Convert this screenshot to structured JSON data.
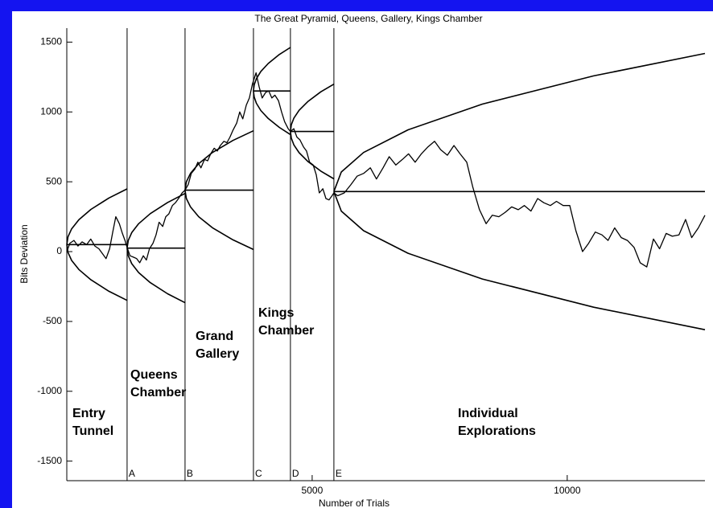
{
  "chart_data": {
    "type": "line",
    "title": "The Great Pyramid, Queens, Gallery, Kings Chamber",
    "x_label": "Number of Trials",
    "y_label": "Bits Deviation",
    "xlim": [
      190,
      12700
    ],
    "ylim": [
      -1640,
      1600
    ],
    "xticks": [
      5000,
      10000
    ],
    "yticks": [
      -1500,
      -1000,
      -500,
      0,
      500,
      1000,
      1500
    ],
    "color": "#000000",
    "markers": [
      {
        "x": 1372,
        "label": "A"
      },
      {
        "x": 2508,
        "label": "B"
      },
      {
        "x": 3849,
        "label": "C"
      },
      {
        "x": 4574,
        "label": "D"
      },
      {
        "x": 5426,
        "label": "E"
      }
    ],
    "annotations": [
      [
        "Entry",
        "Tunnel"
      ],
      [
        "Queens",
        "Chamber"
      ],
      [
        "Grand",
        "Gallery"
      ],
      [
        "Kings",
        "Chamber"
      ],
      [
        "Individual",
        "Explorations"
      ]
    ],
    "lines": [
      {
        "x": [
          190,
          214,
          285,
          426,
          663,
          1017,
          1372
        ],
        "values": [
          50,
          106,
          163,
          228,
          302,
          384,
          449
        ]
      },
      {
        "x": [
          190,
          214,
          285,
          426,
          663,
          1017,
          1372
        ],
        "values": [
          50,
          -6,
          -63,
          -128,
          -202,
          -284,
          -349
        ]
      },
      {
        "x": [
          190,
          1372
        ],
        "values": [
          50,
          50
        ]
      },
      {
        "x": [
          1372,
          1395,
          1463,
          1599,
          1826,
          2167,
          2508
        ],
        "values": [
          25,
          80,
          136,
          200,
          272,
          352,
          416
        ]
      },
      {
        "x": [
          1372,
          1395,
          1463,
          1599,
          1826,
          2167,
          2508
        ],
        "values": [
          25,
          -30,
          -86,
          -150,
          -222,
          -302,
          -366
        ]
      },
      {
        "x": [
          1372,
          2508
        ],
        "values": [
          25,
          25
        ]
      },
      {
        "x": [
          2508,
          2535,
          2615,
          2776,
          3044,
          3447,
          3849
        ],
        "values": [
          440,
          500,
          560,
          630,
          709,
          796,
          865
        ]
      },
      {
        "x": [
          2508,
          2535,
          2615,
          2776,
          3044,
          3447,
          3849
        ],
        "values": [
          440,
          380,
          320,
          250,
          171,
          84,
          15
        ]
      },
      {
        "x": [
          2508,
          3849
        ],
        "values": [
          440,
          440
        ]
      },
      {
        "x": [
          3849,
          3864,
          3907,
          3994,
          4139,
          4357,
          4574
        ],
        "values": [
          1150,
          1194,
          1238,
          1290,
          1347,
          1411,
          1462
        ]
      },
      {
        "x": [
          3849,
          3864,
          3907,
          3994,
          4139,
          4357,
          4574
        ],
        "values": [
          1150,
          1106,
          1062,
          1010,
          953,
          889,
          838
        ]
      },
      {
        "x": [
          3849,
          4574
        ],
        "values": [
          1150,
          1150
        ]
      },
      {
        "x": [
          4574,
          4591,
          4642,
          4744,
          4915,
          5170,
          5426
        ],
        "values": [
          860,
          908,
          956,
          1012,
          1074,
          1144,
          1199
        ]
      },
      {
        "x": [
          4574,
          4591,
          4642,
          4744,
          4915,
          5170,
          5426
        ],
        "values": [
          860,
          812,
          764,
          708,
          646,
          576,
          521
        ]
      },
      {
        "x": [
          4574,
          5426
        ],
        "values": [
          860,
          860
        ]
      },
      {
        "x": [
          5426,
          5571,
          6008,
          6881,
          8336,
          10518,
          12700
        ],
        "values": [
          430,
          570,
          710,
          872,
          1056,
          1258,
          1419
        ]
      },
      {
        "x": [
          5426,
          5571,
          6008,
          6881,
          8336,
          10518,
          12700
        ],
        "values": [
          430,
          290,
          150,
          -12,
          -196,
          -398,
          -559
        ]
      },
      {
        "x": [
          5426,
          12700
        ],
        "values": [
          430,
          430
        ]
      }
    ],
    "walk": {
      "x": [
        190,
        250,
        330,
        410,
        490,
        580,
        660,
        740,
        820,
        900,
        960,
        1030,
        1090,
        1150,
        1220,
        1280,
        1330,
        1372,
        1430,
        1500,
        1560,
        1620,
        1690,
        1750,
        1810,
        1880,
        1940,
        2000,
        2070,
        2130,
        2190,
        2260,
        2320,
        2380,
        2450,
        2508,
        2570,
        2630,
        2700,
        2760,
        2820,
        2890,
        2950,
        3010,
        3080,
        3140,
        3200,
        3270,
        3330,
        3390,
        3450,
        3520,
        3580,
        3640,
        3710,
        3770,
        3830,
        3900,
        3960,
        4020,
        4090,
        4150,
        4210,
        4270,
        4340,
        4400,
        4460,
        4530,
        4574,
        4640,
        4700,
        4760,
        4830,
        4890,
        4950,
        5020,
        5080,
        5140,
        5210,
        5270,
        5330,
        5390,
        5426,
        5500,
        5630,
        5760,
        5880,
        6010,
        6140,
        6260,
        6390,
        6510,
        6640,
        6770,
        6890,
        7020,
        7140,
        7270,
        7400,
        7520,
        7650,
        7780,
        7900,
        8030,
        8150,
        8280,
        8410,
        8530,
        8660,
        8780,
        8910,
        9040,
        9160,
        9290,
        9420,
        9540,
        9670,
        9790,
        9920,
        10050,
        10170,
        10300,
        10420,
        10550,
        10680,
        10800,
        10930,
        11060,
        11180,
        11310,
        11430,
        11560,
        11690,
        11810,
        11940,
        12060,
        12190,
        12320,
        12440,
        12570,
        12700
      ],
      "values": [
        0,
        60,
        80,
        40,
        70,
        50,
        90,
        40,
        20,
        -20,
        -50,
        20,
        140,
        250,
        200,
        130,
        80,
        30,
        -30,
        -40,
        -50,
        -80,
        -30,
        -60,
        20,
        60,
        120,
        210,
        180,
        250,
        270,
        330,
        350,
        380,
        420,
        440,
        480,
        560,
        590,
        640,
        600,
        660,
        650,
        700,
        740,
        720,
        760,
        790,
        780,
        820,
        870,
        920,
        1000,
        950,
        1050,
        1100,
        1200,
        1280,
        1180,
        1100,
        1140,
        1150,
        1100,
        1120,
        1080,
        1000,
        930,
        880,
        860,
        880,
        820,
        800,
        750,
        720,
        640,
        620,
        550,
        420,
        450,
        380,
        370,
        400,
        420,
        400,
        420,
        480,
        540,
        560,
        600,
        520,
        600,
        680,
        620,
        660,
        700,
        640,
        700,
        750,
        790,
        730,
        690,
        760,
        700,
        640,
        460,
        300,
        200,
        260,
        250,
        280,
        320,
        300,
        330,
        290,
        380,
        350,
        330,
        360,
        330,
        330,
        150,
        0,
        60,
        140,
        120,
        80,
        170,
        100,
        80,
        30,
        -80,
        -110,
        90,
        20,
        130,
        110,
        120,
        230,
        100,
        170,
        260
      ]
    }
  }
}
